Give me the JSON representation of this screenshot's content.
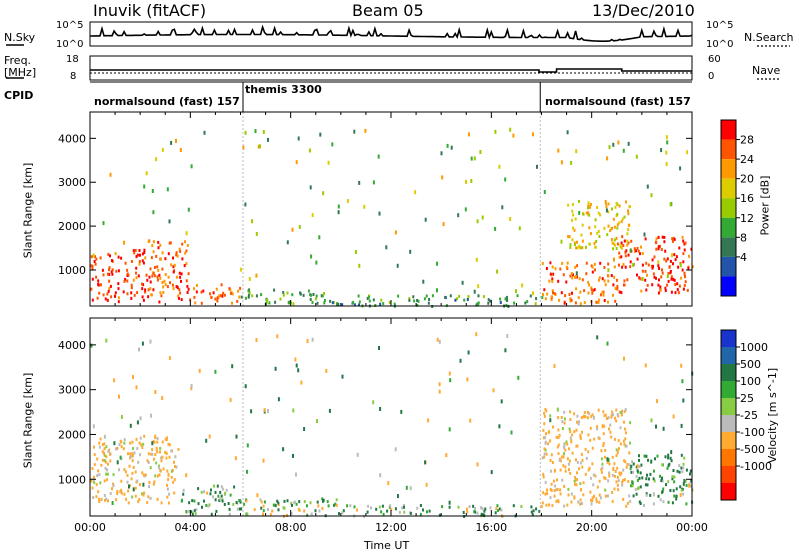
{
  "header": {
    "station": "Inuvik (fitACF)",
    "beam": "Beam 05",
    "date": "13/Dec/2010"
  },
  "noise_panel": {
    "left_label": "N.Sky",
    "right_label": "N.Search",
    "left_ticks": [
      "10^5",
      "10^0"
    ],
    "right_ticks": [
      "10^5",
      "10^0"
    ]
  },
  "freq_panel": {
    "left_label": "Freq.",
    "left_unit": "[MHz]",
    "right_label": "Nave",
    "left_ticks": [
      "18",
      "8"
    ],
    "right_ticks": [
      "60",
      "0"
    ]
  },
  "cpid": {
    "label": "CPID",
    "segments": [
      {
        "name": "normalsound (fast) 157",
        "start_hour": 0,
        "end_hour": 6.1
      },
      {
        "name": "themis 3300",
        "start_hour": 6.1,
        "end_hour": 17.95
      },
      {
        "name": "normalsound (fast) 157",
        "start_hour": 17.95,
        "end_hour": 24
      }
    ]
  },
  "power_colorbar": {
    "label": "Power [dB]",
    "ticks": [
      "28",
      "24",
      "20",
      "16",
      "12",
      "8",
      "4"
    ],
    "colors": [
      "#ff0000",
      "#ff5500",
      "#ff9900",
      "#ddcc00",
      "#99cc00",
      "#33aa33",
      "#337755",
      "#2255aa",
      "#0000ff"
    ]
  },
  "velocity_colorbar": {
    "label": "Velocity [m s^-1]",
    "ticks": [
      "1000",
      "500",
      "100",
      "25",
      "-25",
      "-100",
      "-500",
      "-1000"
    ],
    "colors": [
      "#1a33cc",
      "#2266aa",
      "#227744",
      "#33aa33",
      "#88cc44",
      "#bbbbbb",
      "#ffaa33",
      "#ff7700",
      "#ff4400",
      "#ff0000"
    ]
  },
  "chart_data": [
    {
      "type": "heatmap",
      "title": "Power",
      "xlabel": "",
      "ylabel": "Slant Range [km]",
      "xlim": [
        0,
        24
      ],
      "ylim": [
        180,
        4600
      ],
      "x_ticks": [
        "00:00",
        "04:00",
        "08:00",
        "12:00",
        "16:00",
        "20:00",
        "00:00"
      ],
      "y_ticks": [
        1000,
        2000,
        3000,
        4000
      ],
      "regions": [
        {
          "t0": 0,
          "t1": 2.3,
          "r0": 300,
          "r1": 1500,
          "value": 28
        },
        {
          "t0": 2.3,
          "t1": 4.0,
          "r0": 300,
          "r1": 1700,
          "value": 26
        },
        {
          "t0": 4.0,
          "t1": 6.0,
          "r0": 250,
          "r1": 700,
          "value": 25
        },
        {
          "t0": 6.0,
          "t1": 9.5,
          "r0": 250,
          "r1": 600,
          "value": 10
        },
        {
          "t0": 9.5,
          "t1": 18.0,
          "r0": 200,
          "r1": 450,
          "value": 8
        },
        {
          "t0": 18.0,
          "t1": 21.0,
          "r0": 250,
          "r1": 1200,
          "value": 25
        },
        {
          "t0": 21.0,
          "t1": 24.0,
          "r0": 500,
          "r1": 1800,
          "value": 28
        },
        {
          "t0": 19.0,
          "t1": 21.5,
          "r0": 1500,
          "r1": 2600,
          "value": 18
        }
      ]
    },
    {
      "type": "heatmap",
      "title": "Velocity",
      "xlabel": "Time UT",
      "ylabel": "Slant Range [km]",
      "xlim": [
        0,
        24
      ],
      "ylim": [
        180,
        4600
      ],
      "x_ticks": [
        "00:00",
        "04:00",
        "08:00",
        "12:00",
        "16:00",
        "20:00",
        "00:00"
      ],
      "y_ticks": [
        1000,
        2000,
        3000,
        4000
      ],
      "regions": [
        {
          "t0": 0,
          "t1": 3.5,
          "r0": 500,
          "r1": 2000,
          "value": -200
        },
        {
          "t0": 3.5,
          "t1": 6.0,
          "r0": 250,
          "r1": 900,
          "value": 80
        },
        {
          "t0": 6.0,
          "t1": 10.0,
          "r0": 200,
          "r1": 600,
          "value": 0
        },
        {
          "t0": 10.0,
          "t1": 18.0,
          "r0": 200,
          "r1": 450,
          "value": 60
        },
        {
          "t0": 18.0,
          "t1": 21.5,
          "r0": 400,
          "r1": 2600,
          "value": -200
        },
        {
          "t0": 21.5,
          "t1": 24.0,
          "r0": 400,
          "r1": 1600,
          "value": 120
        }
      ]
    }
  ]
}
